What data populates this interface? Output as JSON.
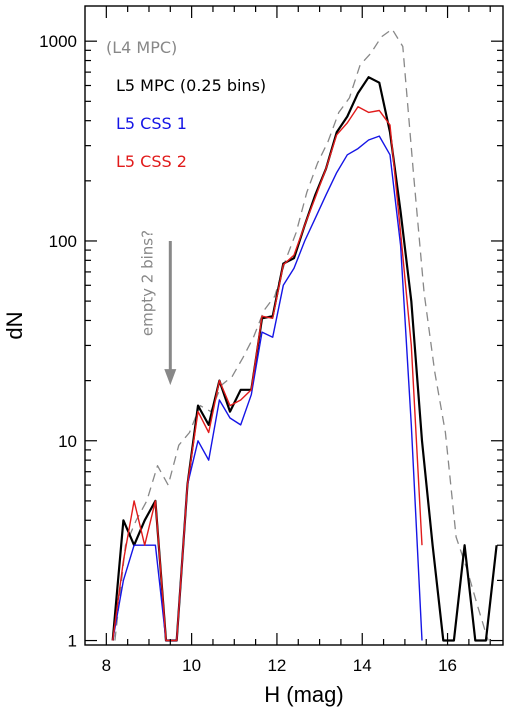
{
  "chart_data": {
    "type": "line",
    "xlabel": "H (mag)",
    "ylabel": "dN",
    "xlim": [
      7.5,
      17.3
    ],
    "ylim": [
      0.95,
      1500
    ],
    "yscale": "log",
    "grid": false,
    "legend_position": "top-left",
    "x_ticks": [
      8,
      10,
      12,
      14,
      16
    ],
    "x_tick_labels": [
      "8",
      "10",
      "12",
      "14",
      "16"
    ],
    "y_ticks": [
      1,
      10,
      100,
      1000
    ],
    "y_tick_labels": [
      "1",
      "10",
      "100",
      "1000"
    ],
    "series": [
      {
        "name": "(L4 MPC)",
        "color": "#888888",
        "dashed": true,
        "width": 1.3,
        "x": [
          8.2,
          8.45,
          8.7,
          8.95,
          9.2,
          9.45,
          9.7,
          9.95,
          10.2,
          10.45,
          10.7,
          10.95,
          11.2,
          11.45,
          11.7,
          11.95,
          12.2,
          12.45,
          12.7,
          12.95,
          13.2,
          13.45,
          13.7,
          13.95,
          14.2,
          14.45,
          14.7,
          14.95,
          15.2,
          15.45,
          15.7,
          15.95,
          16.2,
          16.45,
          16.7,
          16.95
        ],
        "values": [
          1,
          3,
          4,
          5,
          7.5,
          6,
          9.5,
          11,
          15,
          14,
          19,
          21,
          26,
          33,
          45,
          53,
          80,
          110,
          175,
          245,
          315,
          440,
          520,
          760,
          870,
          1050,
          1150,
          940,
          220,
          55,
          22,
          11,
          3.3,
          2.3,
          1.5,
          1
        ]
      },
      {
        "name": "L5 MPC (0.25 bins)",
        "color": "#000000",
        "dashed": false,
        "width": 2.2,
        "x": [
          8.15,
          8.4,
          8.65,
          8.9,
          9.15,
          9.4,
          9.65,
          9.9,
          10.15,
          10.4,
          10.65,
          10.9,
          11.15,
          11.4,
          11.65,
          11.9,
          12.15,
          12.4,
          12.65,
          12.9,
          13.15,
          13.4,
          13.65,
          13.9,
          14.15,
          14.4,
          14.65,
          14.9,
          15.15,
          15.4,
          15.65,
          15.9,
          16.15,
          16.4,
          16.65,
          16.9,
          17.15
        ],
        "values": [
          1,
          4,
          3,
          4,
          5,
          1,
          1,
          6,
          15,
          12,
          20,
          14,
          18,
          18,
          41,
          42,
          77,
          82,
          120,
          170,
          230,
          350,
          420,
          550,
          660,
          620,
          350,
          140,
          50,
          10,
          3,
          1,
          1,
          3,
          1,
          1,
          3
        ]
      },
      {
        "name": "L5 CSS 1",
        "color": "#1515e6",
        "dashed": false,
        "width": 1.4,
        "x": [
          8.15,
          8.4,
          8.65,
          8.9,
          9.15,
          9.4,
          9.65,
          9.9,
          10.15,
          10.4,
          10.65,
          10.9,
          11.15,
          11.4,
          11.65,
          11.9,
          12.15,
          12.4,
          12.65,
          12.9,
          13.15,
          13.4,
          13.65,
          13.9,
          14.15,
          14.4,
          14.65,
          14.9,
          15.15,
          15.4
        ],
        "values": [
          1,
          2,
          3,
          3,
          3,
          1,
          1,
          6,
          10,
          8,
          16,
          13,
          12,
          17,
          35,
          33,
          60,
          73,
          100,
          130,
          170,
          220,
          270,
          290,
          320,
          335,
          270,
          95,
          12,
          1
        ]
      },
      {
        "name": "L5 CSS 2",
        "color": "#e11b1b",
        "dashed": false,
        "width": 1.4,
        "x": [
          8.15,
          8.4,
          8.65,
          8.9,
          9.15,
          9.4,
          9.65,
          9.9,
          10.15,
          10.4,
          10.65,
          10.9,
          11.15,
          11.4,
          11.65,
          11.9,
          12.15,
          12.4,
          12.65,
          12.9,
          13.15,
          13.4,
          13.65,
          13.9,
          14.15,
          14.4,
          14.65,
          14.9,
          15.15,
          15.4
        ],
        "values": [
          1,
          2.5,
          5,
          3,
          5,
          1,
          1,
          6,
          14,
          11,
          20,
          15,
          16,
          18,
          42,
          41,
          76,
          85,
          120,
          165,
          230,
          340,
          390,
          470,
          440,
          450,
          380,
          110,
          30,
          3
        ]
      }
    ],
    "annotations": [
      {
        "text": "empty 2 bins?",
        "color": "#888888",
        "arrow_x": 9.5,
        "arrow_from_y": 100,
        "arrow_to_y": 19
      }
    ]
  }
}
